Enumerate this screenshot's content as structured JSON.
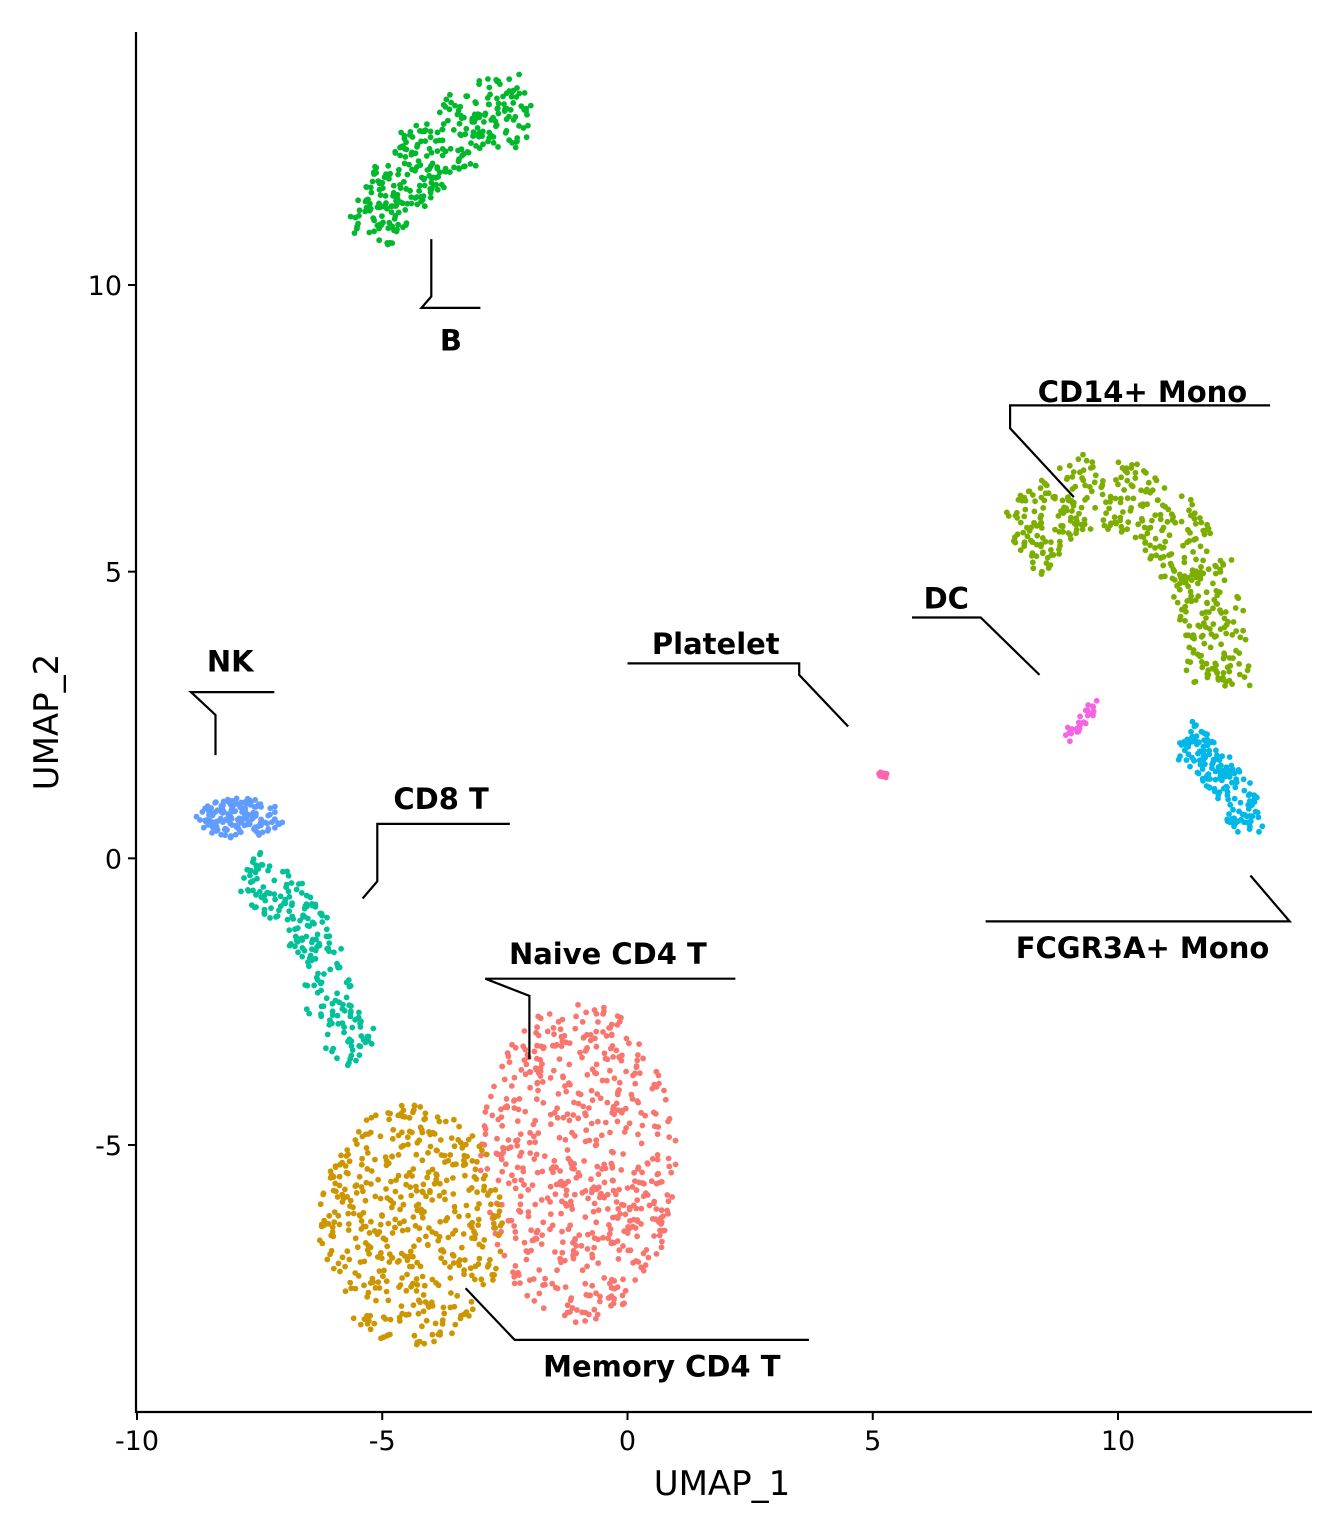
{
  "chart_data": {
    "type": "scatter",
    "xlabel": "UMAP_1",
    "ylabel": "UMAP_2",
    "xlim": [
      -10.1,
      13.9
    ],
    "ylim": [
      -9.6,
      14.4
    ],
    "x_ticks": [
      -10,
      -5,
      0,
      5,
      10
    ],
    "y_ticks": [
      -5,
      0,
      5,
      10
    ],
    "x_tick_labels": [
      "-10",
      "-5",
      "0",
      "5",
      "10"
    ],
    "y_tick_labels": [
      "-5",
      "0",
      "5",
      "10"
    ],
    "grid": false,
    "legend": "none",
    "clusters": [
      {
        "label": "Naive CD4 T",
        "color": "#F8766D",
        "n": 620,
        "shape": {
          "type": "ellipse",
          "cx": -1.0,
          "cy": -5.3,
          "rx": 2.0,
          "ry": 2.8,
          "rot": 0
        },
        "label_xy": [
          -0.4,
          -1.7
        ],
        "leader": [
          [
            -2.0,
            -3.5
          ],
          [
            -2.0,
            -2.4
          ],
          [
            -2.9,
            -2.1
          ],
          [
            2.2,
            -2.1
          ]
        ]
      },
      {
        "label": "Memory CD4 T",
        "color": "#CD9600",
        "n": 480,
        "shape": {
          "type": "ellipse",
          "cx": -4.4,
          "cy": -6.4,
          "rx": 1.9,
          "ry": 2.1,
          "rot": 0
        },
        "label_xy": [
          0.7,
          -8.9
        ],
        "leader": [
          [
            -3.3,
            -7.5
          ],
          [
            -2.3,
            -8.4
          ],
          [
            3.7,
            -8.4
          ]
        ]
      },
      {
        "label": "CD14+ Mono",
        "color": "#7CAE00",
        "n": 460,
        "shape": {
          "type": "arc",
          "points": [
            [
              8.0,
              5.4
            ],
            [
              8.9,
              6.2
            ],
            [
              9.8,
              6.4
            ],
            [
              10.8,
              6.0
            ],
            [
              11.6,
              5.1
            ],
            [
              12.0,
              4.0
            ],
            [
              12.1,
              3.0
            ]
          ],
          "width": 1.3
        },
        "label_xy": [
          10.5,
          8.1
        ],
        "leader": [
          [
            9.1,
            6.3
          ],
          [
            7.8,
            7.5
          ],
          [
            7.8,
            7.9
          ],
          [
            13.1,
            7.9
          ]
        ]
      },
      {
        "label": "CD8 T",
        "color": "#00BE67",
        "colour_note": "teal",
        "n": 0
      },
      {
        "label": "B",
        "color": "#00B82C",
        "n": 330,
        "shape": {
          "type": "band",
          "points": [
            [
              -5.2,
              10.8
            ],
            [
              -4.6,
              11.8
            ],
            [
              -3.9,
              12.4
            ],
            [
              -3.0,
              13.0
            ],
            [
              -2.0,
              13.1
            ]
          ],
          "width": 1.2
        },
        "label_xy": [
          -3.6,
          9.0
        ],
        "leader": [
          [
            -4.0,
            10.8
          ],
          [
            -4.0,
            9.8
          ],
          [
            -4.2,
            9.6
          ],
          [
            -3.0,
            9.6
          ]
        ]
      },
      {
        "label": "CD8 T",
        "color": "#00C19A",
        "n": 220,
        "shape": {
          "type": "band",
          "points": [
            [
              -7.8,
              -0.2
            ],
            [
              -6.8,
              -0.8
            ],
            [
              -6.2,
              -1.8
            ],
            [
              -6.0,
              -2.8
            ],
            [
              -5.4,
              -3.4
            ]
          ],
          "width": 0.9
        },
        "label_xy": [
          -3.8,
          1.0
        ],
        "leader": [
          [
            -5.4,
            -0.7
          ],
          [
            -5.1,
            -0.4
          ],
          [
            -5.1,
            0.6
          ],
          [
            -2.4,
            0.6
          ]
        ]
      },
      {
        "label": "FCGR3A+ Mono",
        "color": "#00B8E7",
        "n": 170,
        "shape": {
          "type": "band",
          "points": [
            [
              11.4,
              2.1
            ],
            [
              11.8,
              1.7
            ],
            [
              12.3,
              1.3
            ],
            [
              12.6,
              0.8
            ],
            [
              12.6,
              0.5
            ]
          ],
          "width": 0.7
        },
        "label_xy": [
          10.5,
          -1.6
        ],
        "leader": [
          [
            12.7,
            -0.3
          ],
          [
            12.7,
            -0.3
          ],
          [
            13.5,
            -1.1
          ],
          [
            7.3,
            -1.1
          ]
        ]
      },
      {
        "label": "NK",
        "color": "#619CFF",
        "n": 150,
        "shape": {
          "type": "ellipse",
          "cx": -7.9,
          "cy": 0.7,
          "rx": 0.9,
          "ry": 0.35,
          "rot": 0
        },
        "label_xy": [
          -8.1,
          3.4
        ],
        "leader": [
          [
            -8.4,
            1.8
          ],
          [
            -8.4,
            2.5
          ],
          [
            -8.9,
            2.9
          ],
          [
            -7.2,
            2.9
          ]
        ]
      },
      {
        "label": "DC",
        "color": "#F564E3",
        "n": 30,
        "shape": {
          "type": "band",
          "points": [
            [
              8.9,
              2.1
            ],
            [
              9.2,
              2.3
            ],
            [
              9.4,
              2.5
            ],
            [
              9.5,
              2.7
            ]
          ],
          "width": 0.12
        },
        "label_xy": [
          6.5,
          4.5
        ],
        "leader": [
          [
            8.4,
            3.2
          ],
          [
            7.2,
            4.2
          ],
          [
            5.8,
            4.2
          ]
        ]
      },
      {
        "label": "Platelet",
        "color": "#FF64B0",
        "n": 10,
        "shape": {
          "type": "ellipse",
          "cx": 5.2,
          "cy": 1.45,
          "rx": 0.1,
          "ry": 0.06,
          "rot": 0
        },
        "label_xy": [
          1.8,
          3.7
        ],
        "leader": [
          [
            4.5,
            2.3
          ],
          [
            3.5,
            3.2
          ],
          [
            3.5,
            3.4
          ],
          [
            0.0,
            3.4
          ]
        ]
      }
    ]
  }
}
